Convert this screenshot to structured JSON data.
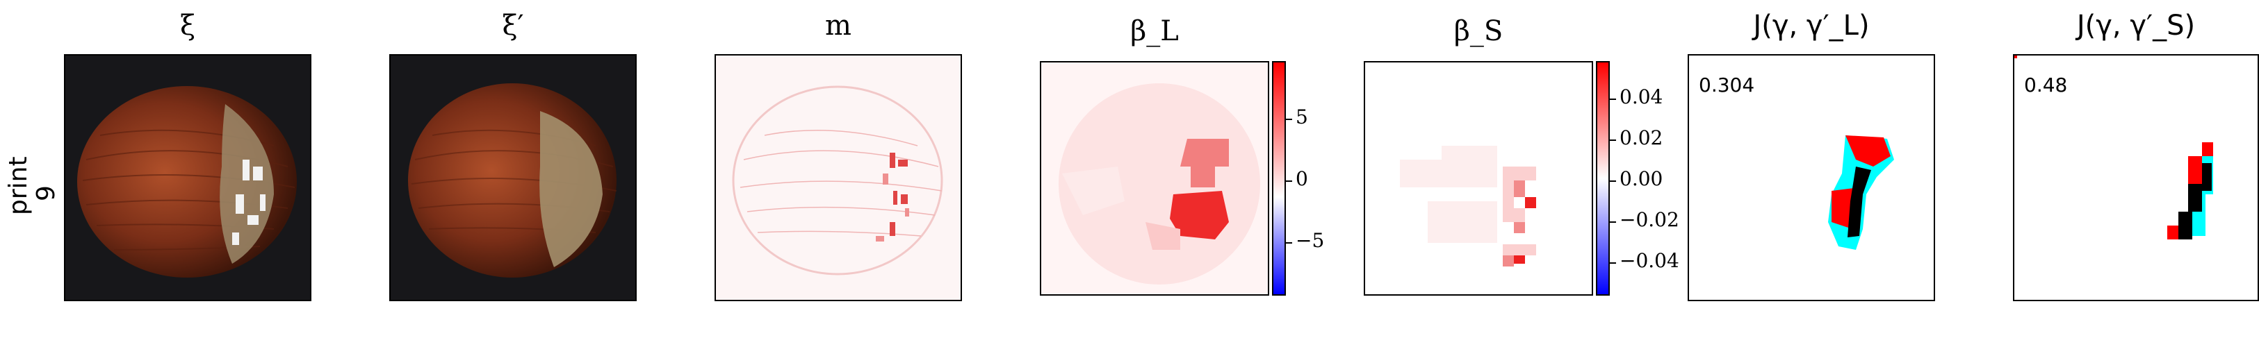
{
  "row_label": "print\n9",
  "row_label_lines": [
    "print",
    "9"
  ],
  "panels": [
    {
      "id": "xi",
      "title": "ξ"
    },
    {
      "id": "xi-prime",
      "title": "ξ′"
    },
    {
      "id": "m",
      "title": "m"
    },
    {
      "id": "beta-l",
      "title": "β_L",
      "colorbar_ticks": [
        "5",
        "0",
        "−5"
      ]
    },
    {
      "id": "beta-s",
      "title": "β_S",
      "colorbar_ticks": [
        "0.04",
        "0.02",
        "0.00",
        "−0.02",
        "−0.04"
      ]
    },
    {
      "id": "j-l",
      "title": "J(γ, γ′_L)",
      "score": "0.304"
    },
    {
      "id": "j-s",
      "title": "J(γ, γ′_S)",
      "score": "0.48"
    }
  ],
  "colors": {
    "diverging_pos": "#ff0000",
    "diverging_neg": "#0000ff",
    "overlap_a": "#ff0000",
    "overlap_b": "#00ffff",
    "overlap_both": "#000000"
  }
}
